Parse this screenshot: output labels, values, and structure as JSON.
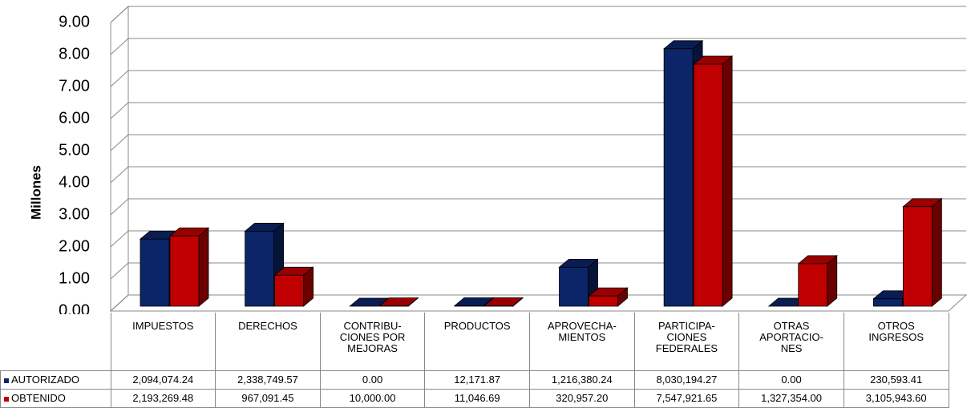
{
  "chart_data": {
    "type": "bar3d",
    "ylabel": "Millones",
    "categories": [
      "IMPUESTOS",
      "DERECHOS",
      "CONTRIBU-\nCIONES POR\nMEJORAS",
      "PRODUCTOS",
      "APROVECHA-\nMIENTOS",
      "PARTICIPA-\nCIONES\nFEDERALES",
      "OTRAS\nAPORTACIO-\nNES",
      "OTROS\nINGRESOS"
    ],
    "series": [
      {
        "name": "AUTORIZADO",
        "color": "#0c2468",
        "values": [
          2.09407424,
          2.33874957,
          0,
          0.01217187,
          1.21638024,
          8.03019427,
          0,
          0.23059341
        ],
        "value_labels": [
          "2,094,074.24",
          "2,338,749.57",
          "0.00",
          "12,171.87",
          "1,216,380.24",
          "8,030,194.27",
          "0.00",
          "230,593.41"
        ]
      },
      {
        "name": "OBTENIDO",
        "color": "#c00000",
        "values": [
          2.19326948,
          0.96709145,
          0.01,
          0.01104669,
          0.3209572,
          7.54792165,
          1.327354,
          3.1059436
        ],
        "value_labels": [
          "2,193,269.48",
          "967,091.45",
          "10,000.00",
          "11,046.69",
          "320,957.20",
          "7,547,921.65",
          "1,327,354.00",
          "3,105,943.60"
        ]
      }
    ],
    "ylim": [
      0,
      9
    ],
    "yticks": [
      {
        "value": 0,
        "label": "0.00"
      },
      {
        "value": 1,
        "label": "1.00"
      },
      {
        "value": 2,
        "label": "2.00"
      },
      {
        "value": 3,
        "label": "3.00"
      },
      {
        "value": 4,
        "label": "4.00"
      },
      {
        "value": 5,
        "label": "5.00"
      },
      {
        "value": 6,
        "label": "6.00"
      },
      {
        "value": 7,
        "label": "7.00"
      },
      {
        "value": 8,
        "label": "8.00"
      },
      {
        "value": 9,
        "label": "9.00"
      }
    ],
    "grid": true
  }
}
